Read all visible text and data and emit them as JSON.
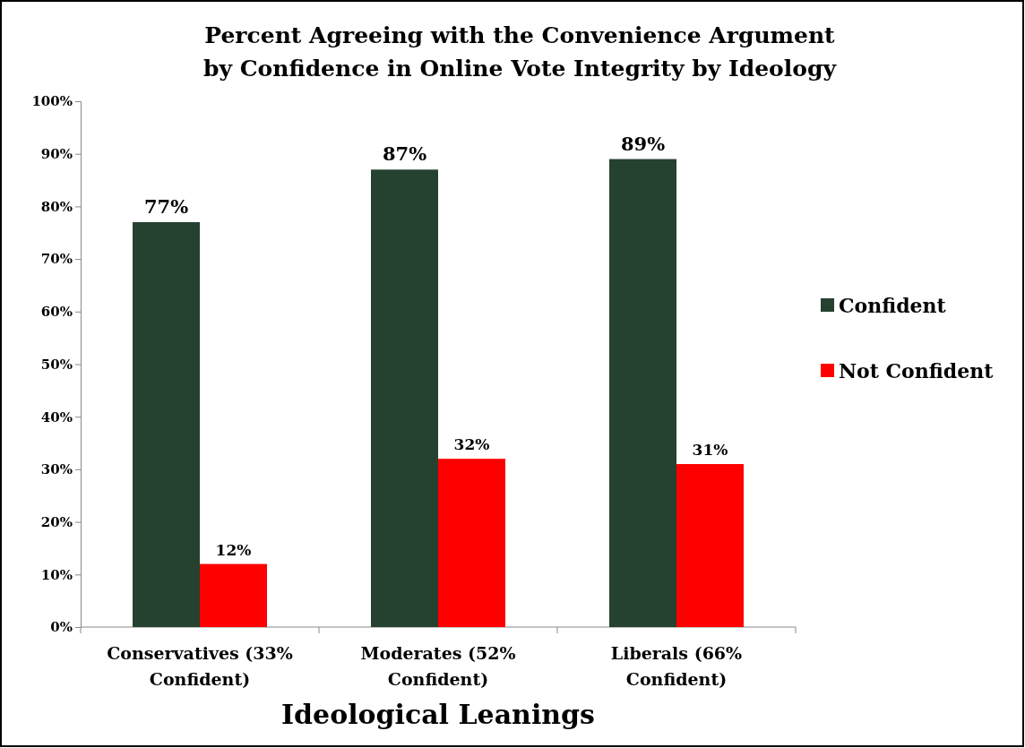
{
  "chart_data": {
    "type": "bar",
    "title": "Percent Agreeing with the Convenience Argument\nby Confidence in Online Vote Integrity by Ideology",
    "xlabel": "Ideological Leanings",
    "categories": [
      "Conservatives (33% Confident)",
      "Moderates (52% Confident)",
      "Liberals (66% Confident)"
    ],
    "series": [
      {
        "name": "Confident",
        "color": "#25412f",
        "values": [
          77,
          87,
          89
        ],
        "value_labels": [
          "77%",
          "87%",
          "89%"
        ]
      },
      {
        "name": "Not Confident",
        "color": "#ff0000",
        "values": [
          12,
          32,
          31
        ],
        "value_labels": [
          "12%",
          "32%",
          "31%"
        ]
      }
    ],
    "ylim": [
      0,
      100
    ],
    "yticks": [
      {
        "value": 0,
        "label": "0%"
      },
      {
        "value": 10,
        "label": "10%"
      },
      {
        "value": 20,
        "label": "20%"
      },
      {
        "value": 30,
        "label": "30%"
      },
      {
        "value": 40,
        "label": "40%"
      },
      {
        "value": 50,
        "label": "50%"
      },
      {
        "value": 60,
        "label": "60%"
      },
      {
        "value": 70,
        "label": "70%"
      },
      {
        "value": 80,
        "label": "80%"
      },
      {
        "value": 90,
        "label": "90%"
      },
      {
        "value": 100,
        "label": "100%"
      }
    ],
    "grid": false,
    "legend": "right"
  }
}
